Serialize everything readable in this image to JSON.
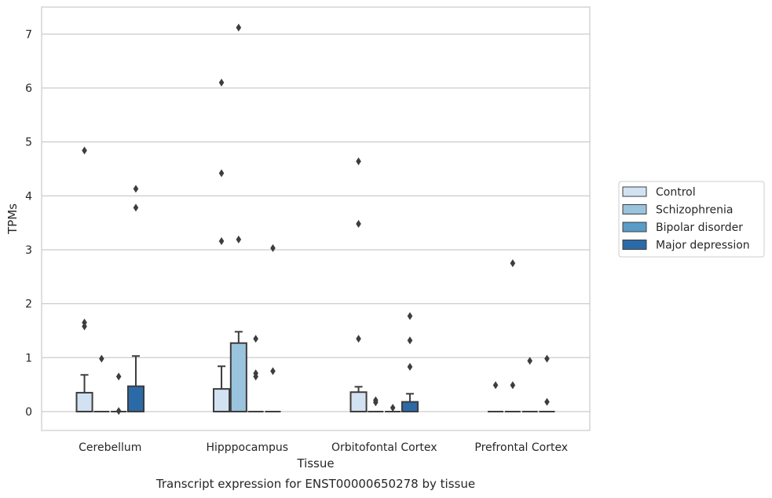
{
  "chart_data": {
    "type": "box",
    "xlabel": "Tissue",
    "ylabel": "TPMs",
    "caption": "Transcript expression for ENST00000650278 by tissue",
    "categories": [
      "Cerebellum",
      "Hipppocampus",
      "Orbitofontal Cortex",
      "Prefrontal Cortex"
    ],
    "ylim": [
      -0.35,
      7.5
    ],
    "yticks": [
      0,
      1,
      2,
      3,
      4,
      5,
      6,
      7
    ],
    "grid": "horizontal",
    "legend_position": "right",
    "series": [
      {
        "name": "Control",
        "color": "#d3e2f2",
        "boxes": [
          {
            "q1": 0,
            "median": 0,
            "q3": 0.35,
            "whisker_low": 0,
            "whisker_high": 0.68,
            "outliers": [
              4.84,
              1.65,
              1.58
            ]
          },
          {
            "q1": 0,
            "median": 0,
            "q3": 0.42,
            "whisker_low": 0,
            "whisker_high": 0.84,
            "outliers": [
              6.1,
              4.42,
              3.16
            ]
          },
          {
            "q1": 0,
            "median": 0,
            "q3": 0.36,
            "whisker_low": 0,
            "whisker_high": 0.46,
            "outliers": [
              4.64,
              3.48,
              1.35
            ]
          },
          {
            "q1": 0,
            "median": 0,
            "q3": 0,
            "whisker_low": 0,
            "whisker_high": 0,
            "outliers": [
              0.49
            ]
          }
        ]
      },
      {
        "name": "Schizophrenia",
        "color": "#9ac3dd",
        "boxes": [
          {
            "q1": 0,
            "median": 0,
            "q3": 0,
            "whisker_low": 0,
            "whisker_high": 0,
            "outliers": [
              0.98
            ]
          },
          {
            "q1": 0,
            "median": 0,
            "q3": 1.27,
            "whisker_low": 0,
            "whisker_high": 1.48,
            "outliers": [
              7.12,
              3.19
            ]
          },
          {
            "q1": 0,
            "median": 0,
            "q3": 0,
            "whisker_low": 0,
            "whisker_high": 0,
            "outliers": [
              0.21,
              0.17
            ]
          },
          {
            "q1": 0,
            "median": 0,
            "q3": 0,
            "whisker_low": 0,
            "whisker_high": 0,
            "outliers": [
              2.75,
              0.49
            ]
          }
        ]
      },
      {
        "name": "Bipolar disorder",
        "color": "#5b9bc8",
        "boxes": [
          {
            "q1": 0,
            "median": 0,
            "q3": 0,
            "whisker_low": 0,
            "whisker_high": 0,
            "outliers": [
              0.65,
              0.01
            ]
          },
          {
            "q1": 0,
            "median": 0,
            "q3": 0,
            "whisker_low": 0,
            "whisker_high": 0,
            "outliers": [
              1.35,
              0.71,
              0.65
            ]
          },
          {
            "q1": 0,
            "median": 0,
            "q3": 0,
            "whisker_low": 0,
            "whisker_high": 0,
            "outliers": [
              0.07
            ]
          },
          {
            "q1": 0,
            "median": 0,
            "q3": 0,
            "whisker_low": 0,
            "whisker_high": 0,
            "outliers": [
              0.94
            ]
          }
        ]
      },
      {
        "name": "Major depression",
        "color": "#2b6aa8",
        "boxes": [
          {
            "q1": 0,
            "median": 0,
            "q3": 0.47,
            "whisker_low": 0,
            "whisker_high": 1.03,
            "outliers": [
              4.13,
              3.78
            ]
          },
          {
            "q1": 0,
            "median": 0,
            "q3": 0,
            "whisker_low": 0,
            "whisker_high": 0,
            "outliers": [
              3.03,
              0.75
            ]
          },
          {
            "q1": 0,
            "median": 0,
            "q3": 0.18,
            "whisker_low": 0,
            "whisker_high": 0.33,
            "outliers": [
              1.77,
              1.32,
              0.83
            ]
          },
          {
            "q1": 0,
            "median": 0,
            "q3": 0,
            "whisker_low": 0,
            "whisker_high": 0,
            "outliers": [
              0.98,
              0.18
            ]
          }
        ]
      }
    ]
  }
}
